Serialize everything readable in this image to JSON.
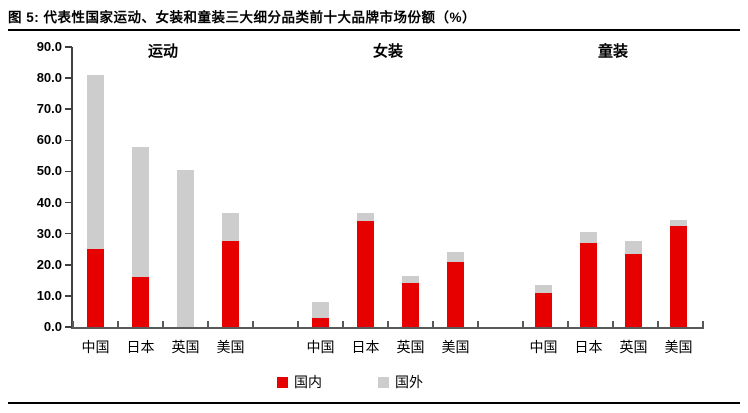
{
  "figure": {
    "title": "图 5: 代表性国家运动、女装和童装三大细分品类前十大品牌市场份额（%）"
  },
  "legend": [
    {
      "label": "国内",
      "color": "#e60000"
    },
    {
      "label": "国外",
      "color": "#cdcdcd"
    }
  ],
  "chart_data": {
    "type": "bar",
    "stacked": true,
    "unit": "%",
    "title": "代表性国家运动、女装和童装三大细分品类前十大品牌市场份额（%）",
    "ylim": [
      0,
      90
    ],
    "ytick_step": 10,
    "ytick_labels": [
      "0.0",
      "10.0",
      "20.0",
      "30.0",
      "40.0",
      "50.0",
      "60.0",
      "70.0",
      "80.0",
      "90.0"
    ],
    "grid": false,
    "legend_position": "bottom",
    "categories": [
      "中国",
      "日本",
      "英国",
      "美国"
    ],
    "colors": {
      "国内": "#e60000",
      "国外": "#cdcdcd"
    },
    "groups": [
      {
        "title": "运动",
        "series": [
          {
            "name": "国内",
            "values": [
              25.0,
              16.0,
              0.0,
              27.5
            ]
          },
          {
            "name": "国外",
            "values": [
              56.0,
              42.0,
              50.5,
              9.0
            ]
          }
        ],
        "totals": [
          81.0,
          58.0,
          50.5,
          36.5
        ]
      },
      {
        "title": "女装",
        "series": [
          {
            "name": "国内",
            "values": [
              3.0,
              34.0,
              14.0,
              21.0
            ]
          },
          {
            "name": "国外",
            "values": [
              5.0,
              2.5,
              2.5,
              3.0
            ]
          }
        ],
        "totals": [
          8.0,
          36.5,
          16.5,
          24.0
        ]
      },
      {
        "title": "童装",
        "series": [
          {
            "name": "国内",
            "values": [
              11.0,
              27.0,
              23.5,
              32.5
            ]
          },
          {
            "name": "国外",
            "values": [
              2.5,
              3.5,
              4.0,
              2.0
            ]
          }
        ],
        "totals": [
          13.5,
          30.5,
          27.5,
          34.5
        ]
      }
    ]
  }
}
